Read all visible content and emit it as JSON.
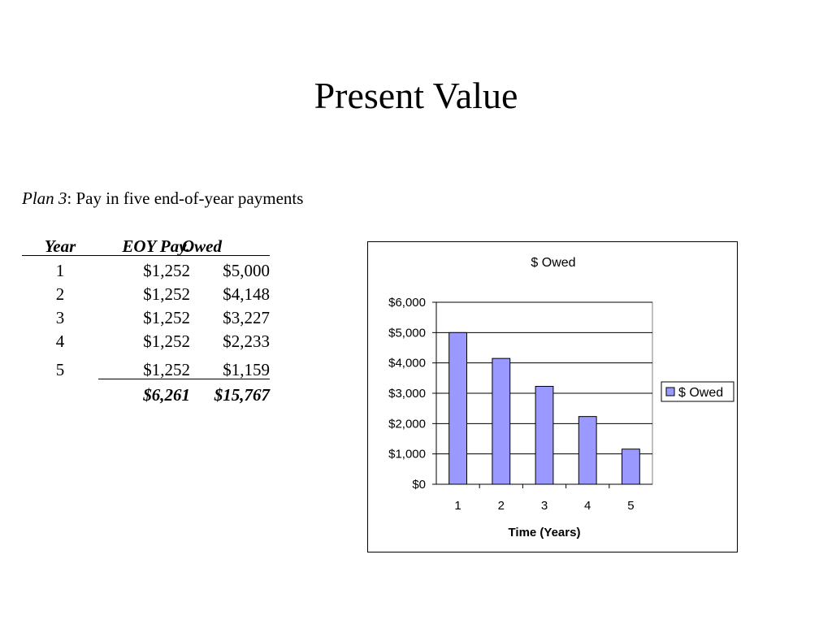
{
  "slide": {
    "title": "Present Value",
    "plan_name": "Plan 3",
    "plan_rest": ": Pay in five end-of-year payments"
  },
  "table": {
    "headers": [
      "Year",
      "EOY Pay.",
      "Owed"
    ],
    "rows": [
      {
        "year": "1",
        "pay": "$1,252",
        "owed": "$5,000"
      },
      {
        "year": "2",
        "pay": "$1,252",
        "owed": "$4,148"
      },
      {
        "year": "3",
        "pay": "$1,252",
        "owed": "$3,227"
      },
      {
        "year": "4",
        "pay": "$1,252",
        "owed": "$2,233"
      },
      {
        "year": "5",
        "pay": "$1,252",
        "owed": "$1,159"
      }
    ],
    "totals": {
      "pay": "$6,261",
      "owed": "$15,767"
    }
  },
  "chart_data": {
    "type": "bar",
    "title": "$ Owed",
    "categories": [
      "1",
      "2",
      "3",
      "4",
      "5"
    ],
    "series": [
      {
        "name": "$ Owed",
        "values": [
          5000,
          4148,
          3227,
          2233,
          1159
        ],
        "color": "#9999ff"
      }
    ],
    "xlabel": "Time (Years)",
    "ylabel": "",
    "ylim": [
      0,
      6000
    ],
    "yticks": [
      0,
      1000,
      2000,
      3000,
      4000,
      5000,
      6000
    ],
    "ytick_labels": [
      "$0",
      "$1,000",
      "$2,000",
      "$3,000",
      "$4,000",
      "$5,000",
      "$6,000"
    ],
    "grid": true,
    "legend": "right",
    "plot_background": "#ffffff"
  }
}
